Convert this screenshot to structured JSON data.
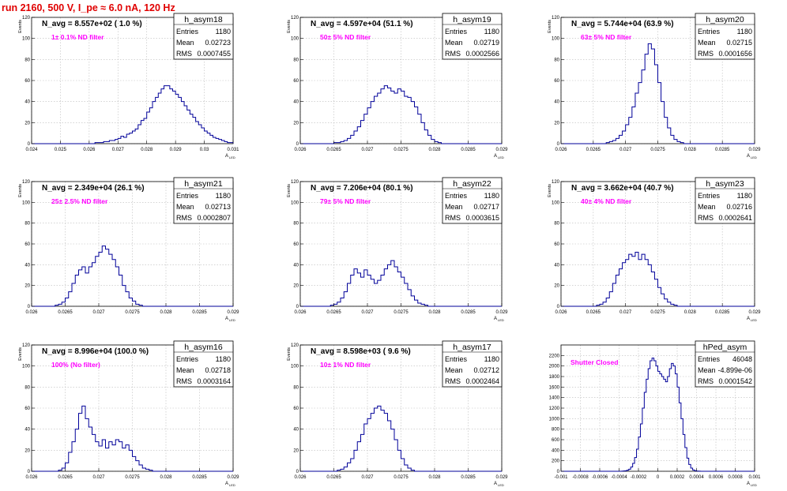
{
  "header": {
    "title": "run 2160,   500 V, I_pe ≈ 6.0 nA, 120 Hz"
  },
  "colors": {
    "histogram_line": "#000099",
    "note_text": "#ff00ff",
    "title_text": "#e00000",
    "grid": "#bbbbbb"
  },
  "chart_data": [
    {
      "type": "bar",
      "name": "h_asym18",
      "ylabel": "Events",
      "xlabel": "",
      "xlim": [
        0.024,
        0.031
      ],
      "ylim": [
        0,
        120
      ],
      "grid": true,
      "x_ticks": [
        "0.024",
        "0.025",
        "0.026",
        "0.027",
        "0.028",
        "0.029",
        "0.03",
        "0.031"
      ],
      "y_ticks": [
        "0",
        "20",
        "40",
        "60",
        "80",
        "100",
        "120"
      ],
      "nbins": 70,
      "values": [
        0,
        0,
        0,
        0,
        0,
        0,
        0,
        0,
        0,
        0,
        0,
        0,
        0,
        0,
        0,
        0,
        0,
        0,
        0,
        0,
        0,
        0,
        1,
        1,
        1,
        2,
        2,
        3,
        3,
        4,
        5,
        7,
        6,
        9,
        10,
        12,
        14,
        18,
        22,
        24,
        30,
        34,
        40,
        44,
        48,
        52,
        55,
        55,
        52,
        50,
        47,
        44,
        40,
        36,
        32,
        28,
        25,
        21,
        18,
        15,
        12,
        10,
        8,
        6,
        5,
        4,
        3,
        2,
        1,
        1
      ],
      "stats": {
        "entries": "1180",
        "mean": "0.02723",
        "rms": "0.0007455"
      },
      "navg": "N_avg = 8.557e+02 ( 1.0 %)",
      "note": "1± 0.1% ND filter",
      "stat_labels": {
        "entries": "Entries",
        "mean": "Mean",
        "rms": "RMS"
      }
    },
    {
      "type": "bar",
      "name": "h_asym19",
      "ylabel": "Events",
      "xlabel": "",
      "xlim": [
        0.026,
        0.029
      ],
      "ylim": [
        0,
        120
      ],
      "grid": true,
      "x_ticks": [
        "0.026",
        "0.0265",
        "0.027",
        "0.0275",
        "0.028",
        "0.0285",
        "0.029"
      ],
      "y_ticks": [
        "0",
        "20",
        "40",
        "60",
        "80",
        "100",
        "120"
      ],
      "nbins": 60,
      "values": [
        0,
        0,
        0,
        0,
        0,
        0,
        0,
        0,
        0,
        0,
        1,
        1,
        2,
        3,
        5,
        8,
        12,
        16,
        22,
        28,
        34,
        40,
        45,
        48,
        52,
        55,
        53,
        50,
        48,
        52,
        50,
        45,
        44,
        40,
        35,
        28,
        20,
        13,
        8,
        4,
        2,
        1,
        0,
        0,
        0,
        0,
        0,
        0,
        0,
        0,
        0,
        0,
        0,
        0,
        0,
        0,
        0,
        0,
        0,
        0
      ],
      "stats": {
        "entries": "1180",
        "mean": "0.02719",
        "rms": "0.0002566"
      },
      "navg": "N_avg = 4.597e+04 (51.1 %)",
      "note": "50± 5% ND filter",
      "stat_labels": {
        "entries": "Entries",
        "mean": "Mean",
        "rms": "RMS"
      }
    },
    {
      "type": "bar",
      "name": "h_asym20",
      "ylabel": "Events",
      "xlabel": "",
      "xlim": [
        0.026,
        0.029
      ],
      "ylim": [
        0,
        120
      ],
      "grid": true,
      "x_ticks": [
        "0.026",
        "0.0265",
        "0.027",
        "0.0275",
        "0.028",
        "0.0285",
        "0.029"
      ],
      "y_ticks": [
        "0",
        "20",
        "40",
        "60",
        "80",
        "100",
        "120"
      ],
      "nbins": 60,
      "values": [
        0,
        0,
        0,
        0,
        0,
        0,
        0,
        0,
        0,
        0,
        0,
        0,
        0,
        0,
        1,
        2,
        3,
        5,
        8,
        12,
        18,
        25,
        35,
        48,
        58,
        70,
        85,
        95,
        90,
        75,
        58,
        40,
        25,
        15,
        8,
        4,
        2,
        1,
        0,
        0,
        0,
        0,
        0,
        0,
        0,
        0,
        0,
        0,
        0,
        0,
        0,
        0,
        0,
        0,
        0,
        0,
        0,
        0,
        0,
        0
      ],
      "stats": {
        "entries": "1180",
        "mean": "0.02715",
        "rms": "0.0001656"
      },
      "navg": "N_avg = 5.744e+04 (63.9 %)",
      "note": "63± 5% ND filter",
      "stat_labels": {
        "entries": "Entries",
        "mean": "Mean",
        "rms": "RMS"
      }
    },
    {
      "type": "bar",
      "name": "h_asym21",
      "ylabel": "Events",
      "xlabel": "",
      "xlim": [
        0.026,
        0.029
      ],
      "ylim": [
        0,
        120
      ],
      "grid": true,
      "x_ticks": [
        "0.026",
        "0.0265",
        "0.027",
        "0.0275",
        "0.028",
        "0.0285",
        "0.029"
      ],
      "y_ticks": [
        "0",
        "20",
        "40",
        "60",
        "80",
        "100",
        "120"
      ],
      "nbins": 60,
      "values": [
        0,
        0,
        0,
        0,
        0,
        0,
        0,
        1,
        2,
        4,
        8,
        14,
        22,
        30,
        35,
        38,
        32,
        38,
        42,
        48,
        52,
        58,
        55,
        50,
        45,
        38,
        30,
        20,
        14,
        8,
        5,
        2,
        1,
        0,
        0,
        0,
        0,
        0,
        0,
        0,
        0,
        0,
        0,
        0,
        0,
        0,
        0,
        0,
        0,
        0,
        0,
        0,
        0,
        0,
        0,
        0,
        0,
        0,
        0,
        0
      ],
      "stats": {
        "entries": "1180",
        "mean": "0.02713",
        "rms": "0.0002807"
      },
      "navg": "N_avg = 2.349e+04 (26.1 %)",
      "note": "25± 2.5% ND filter",
      "stat_labels": {
        "entries": "Entries",
        "mean": "Mean",
        "rms": "RMS"
      }
    },
    {
      "type": "bar",
      "name": "h_asym22",
      "ylabel": "Events",
      "xlabel": "",
      "xlim": [
        0.026,
        0.029
      ],
      "ylim": [
        0,
        120
      ],
      "grid": true,
      "x_ticks": [
        "0.026",
        "0.0265",
        "0.027",
        "0.0275",
        "0.028",
        "0.0285",
        "0.029"
      ],
      "y_ticks": [
        "0",
        "20",
        "40",
        "60",
        "80",
        "100",
        "120"
      ],
      "nbins": 60,
      "values": [
        0,
        0,
        0,
        0,
        0,
        0,
        0,
        0,
        0,
        1,
        2,
        4,
        8,
        14,
        22,
        30,
        36,
        32,
        28,
        35,
        30,
        26,
        22,
        25,
        30,
        36,
        40,
        44,
        38,
        33,
        28,
        22,
        16,
        10,
        6,
        3,
        2,
        1,
        0,
        0,
        0,
        0,
        0,
        0,
        0,
        0,
        0,
        0,
        0,
        0,
        0,
        0,
        0,
        0,
        0,
        0,
        0,
        0,
        0,
        0
      ],
      "stats": {
        "entries": "1180",
        "mean": "0.02717",
        "rms": "0.0003615"
      },
      "navg": "N_avg = 7.206e+04 (80.1 %)",
      "note": "79± 5% ND filter",
      "stat_labels": {
        "entries": "Entries",
        "mean": "Mean",
        "rms": "RMS"
      }
    },
    {
      "type": "bar",
      "name": "h_asym23",
      "ylabel": "Events",
      "xlabel": "",
      "xlim": [
        0.026,
        0.029
      ],
      "ylim": [
        0,
        120
      ],
      "grid": true,
      "x_ticks": [
        "0.026",
        "0.0265",
        "0.027",
        "0.0275",
        "0.028",
        "0.0285",
        "0.029"
      ],
      "y_ticks": [
        "0",
        "20",
        "40",
        "60",
        "80",
        "100",
        "120"
      ],
      "nbins": 60,
      "values": [
        0,
        0,
        0,
        0,
        0,
        0,
        0,
        0,
        0,
        0,
        0,
        1,
        2,
        4,
        8,
        14,
        22,
        30,
        36,
        42,
        45,
        50,
        48,
        52,
        45,
        50,
        45,
        40,
        33,
        26,
        18,
        12,
        7,
        4,
        2,
        1,
        0,
        0,
        0,
        0,
        0,
        0,
        0,
        0,
        0,
        0,
        0,
        0,
        0,
        0,
        0,
        0,
        0,
        0,
        0,
        0,
        0,
        0,
        0,
        0
      ],
      "stats": {
        "entries": "1180",
        "mean": "0.02716",
        "rms": "0.0002641"
      },
      "navg": "N_avg = 3.662e+04 (40.7 %)",
      "note": "40± 4% ND filter",
      "stat_labels": {
        "entries": "Entries",
        "mean": "Mean",
        "rms": "RMS"
      }
    },
    {
      "type": "bar",
      "name": "h_asym16",
      "ylabel": "Events",
      "xlabel": "",
      "xlim": [
        0.026,
        0.029
      ],
      "ylim": [
        0,
        120
      ],
      "grid": true,
      "x_ticks": [
        "0.026",
        "0.0265",
        "0.027",
        "0.0275",
        "0.028",
        "0.0285",
        "0.029"
      ],
      "y_ticks": [
        "0",
        "20",
        "40",
        "60",
        "80",
        "100",
        "120"
      ],
      "nbins": 60,
      "values": [
        0,
        0,
        0,
        0,
        0,
        0,
        0,
        0,
        1,
        3,
        8,
        18,
        28,
        40,
        55,
        62,
        50,
        42,
        35,
        28,
        24,
        30,
        22,
        28,
        25,
        30,
        28,
        22,
        25,
        20,
        14,
        10,
        6,
        3,
        2,
        1,
        0,
        0,
        0,
        0,
        0,
        0,
        0,
        0,
        0,
        0,
        0,
        0,
        0,
        0,
        0,
        0,
        0,
        0,
        0,
        0,
        0,
        0,
        0,
        0
      ],
      "stats": {
        "entries": "1180",
        "mean": "0.02718",
        "rms": "0.0003164"
      },
      "navg": "N_avg = 8.996e+04 (100.0 %)",
      "note": "100% (No filter)",
      "stat_labels": {
        "entries": "Entries",
        "mean": "Mean",
        "rms": "RMS"
      }
    },
    {
      "type": "bar",
      "name": "h_asym17",
      "ylabel": "Events",
      "xlabel": "",
      "xlim": [
        0.026,
        0.029
      ],
      "ylim": [
        0,
        120
      ],
      "grid": true,
      "x_ticks": [
        "0.026",
        "0.0265",
        "0.027",
        "0.0275",
        "0.028",
        "0.0285",
        "0.029"
      ],
      "y_ticks": [
        "0",
        "20",
        "40",
        "60",
        "80",
        "100",
        "120"
      ],
      "nbins": 60,
      "values": [
        0,
        0,
        0,
        0,
        0,
        0,
        0,
        0,
        0,
        0,
        0,
        1,
        2,
        4,
        8,
        12,
        20,
        28,
        35,
        45,
        50,
        55,
        60,
        62,
        58,
        55,
        48,
        40,
        30,
        20,
        12,
        6,
        3,
        1,
        0,
        0,
        0,
        0,
        0,
        0,
        0,
        0,
        0,
        0,
        0,
        0,
        0,
        0,
        0,
        0,
        0,
        0,
        0,
        0,
        0,
        0,
        0,
        0,
        0,
        0
      ],
      "stats": {
        "entries": "1180",
        "mean": "0.02712",
        "rms": "0.0002464"
      },
      "navg": "N_avg = 8.598e+03 ( 9.6 %)",
      "note": "10± 1% ND filter",
      "stat_labels": {
        "entries": "Entries",
        "mean": "Mean",
        "rms": "RMS"
      }
    },
    {
      "type": "bar",
      "name": "hPed_asym",
      "ylabel": "",
      "xlabel": "",
      "xlim": [
        -0.001,
        0.001
      ],
      "ylim": [
        0,
        2400
      ],
      "grid": true,
      "x_ticks": [
        "-0.001",
        "-0.0008",
        "-0.0006",
        "-0.0004",
        "-0.0002",
        "0",
        "0.0002",
        "0.0004",
        "0.0006",
        "0.0008",
        "0.001"
      ],
      "y_ticks": [
        "0",
        "200",
        "400",
        "600",
        "800",
        "1000",
        "1200",
        "1400",
        "1600",
        "1800",
        "2000",
        "2200"
      ],
      "nbins": 100,
      "values": [
        0,
        0,
        0,
        0,
        0,
        0,
        0,
        0,
        0,
        0,
        0,
        0,
        0,
        0,
        0,
        0,
        0,
        0,
        0,
        0,
        0,
        0,
        0,
        0,
        0,
        0,
        0,
        0,
        0,
        0,
        0,
        2,
        5,
        10,
        20,
        40,
        80,
        150,
        260,
        420,
        650,
        900,
        1200,
        1500,
        1750,
        1950,
        2100,
        2150,
        2100,
        2000,
        1900,
        1850,
        1800,
        1750,
        1700,
        1800,
        1950,
        2050,
        2000,
        1850,
        1600,
        1300,
        1000,
        700,
        450,
        250,
        130,
        60,
        25,
        10,
        4,
        1,
        0,
        0,
        0,
        0,
        0,
        0,
        0,
        0,
        0,
        0,
        0,
        0,
        0,
        0,
        0,
        0,
        0,
        0,
        0,
        0,
        0,
        0,
        0,
        0,
        0,
        0,
        0,
        0
      ],
      "stats": {
        "entries": "46048",
        "mean": "-4.899e-06",
        "rms": "0.0001542"
      },
      "navg": "",
      "note": "Shutter Closed",
      "stat_labels": {
        "entries": "Entries",
        "mean": "Mean",
        "rms": "RMS"
      }
    }
  ],
  "axis_label_x": "A",
  "axis_label_x_sub": "LED"
}
